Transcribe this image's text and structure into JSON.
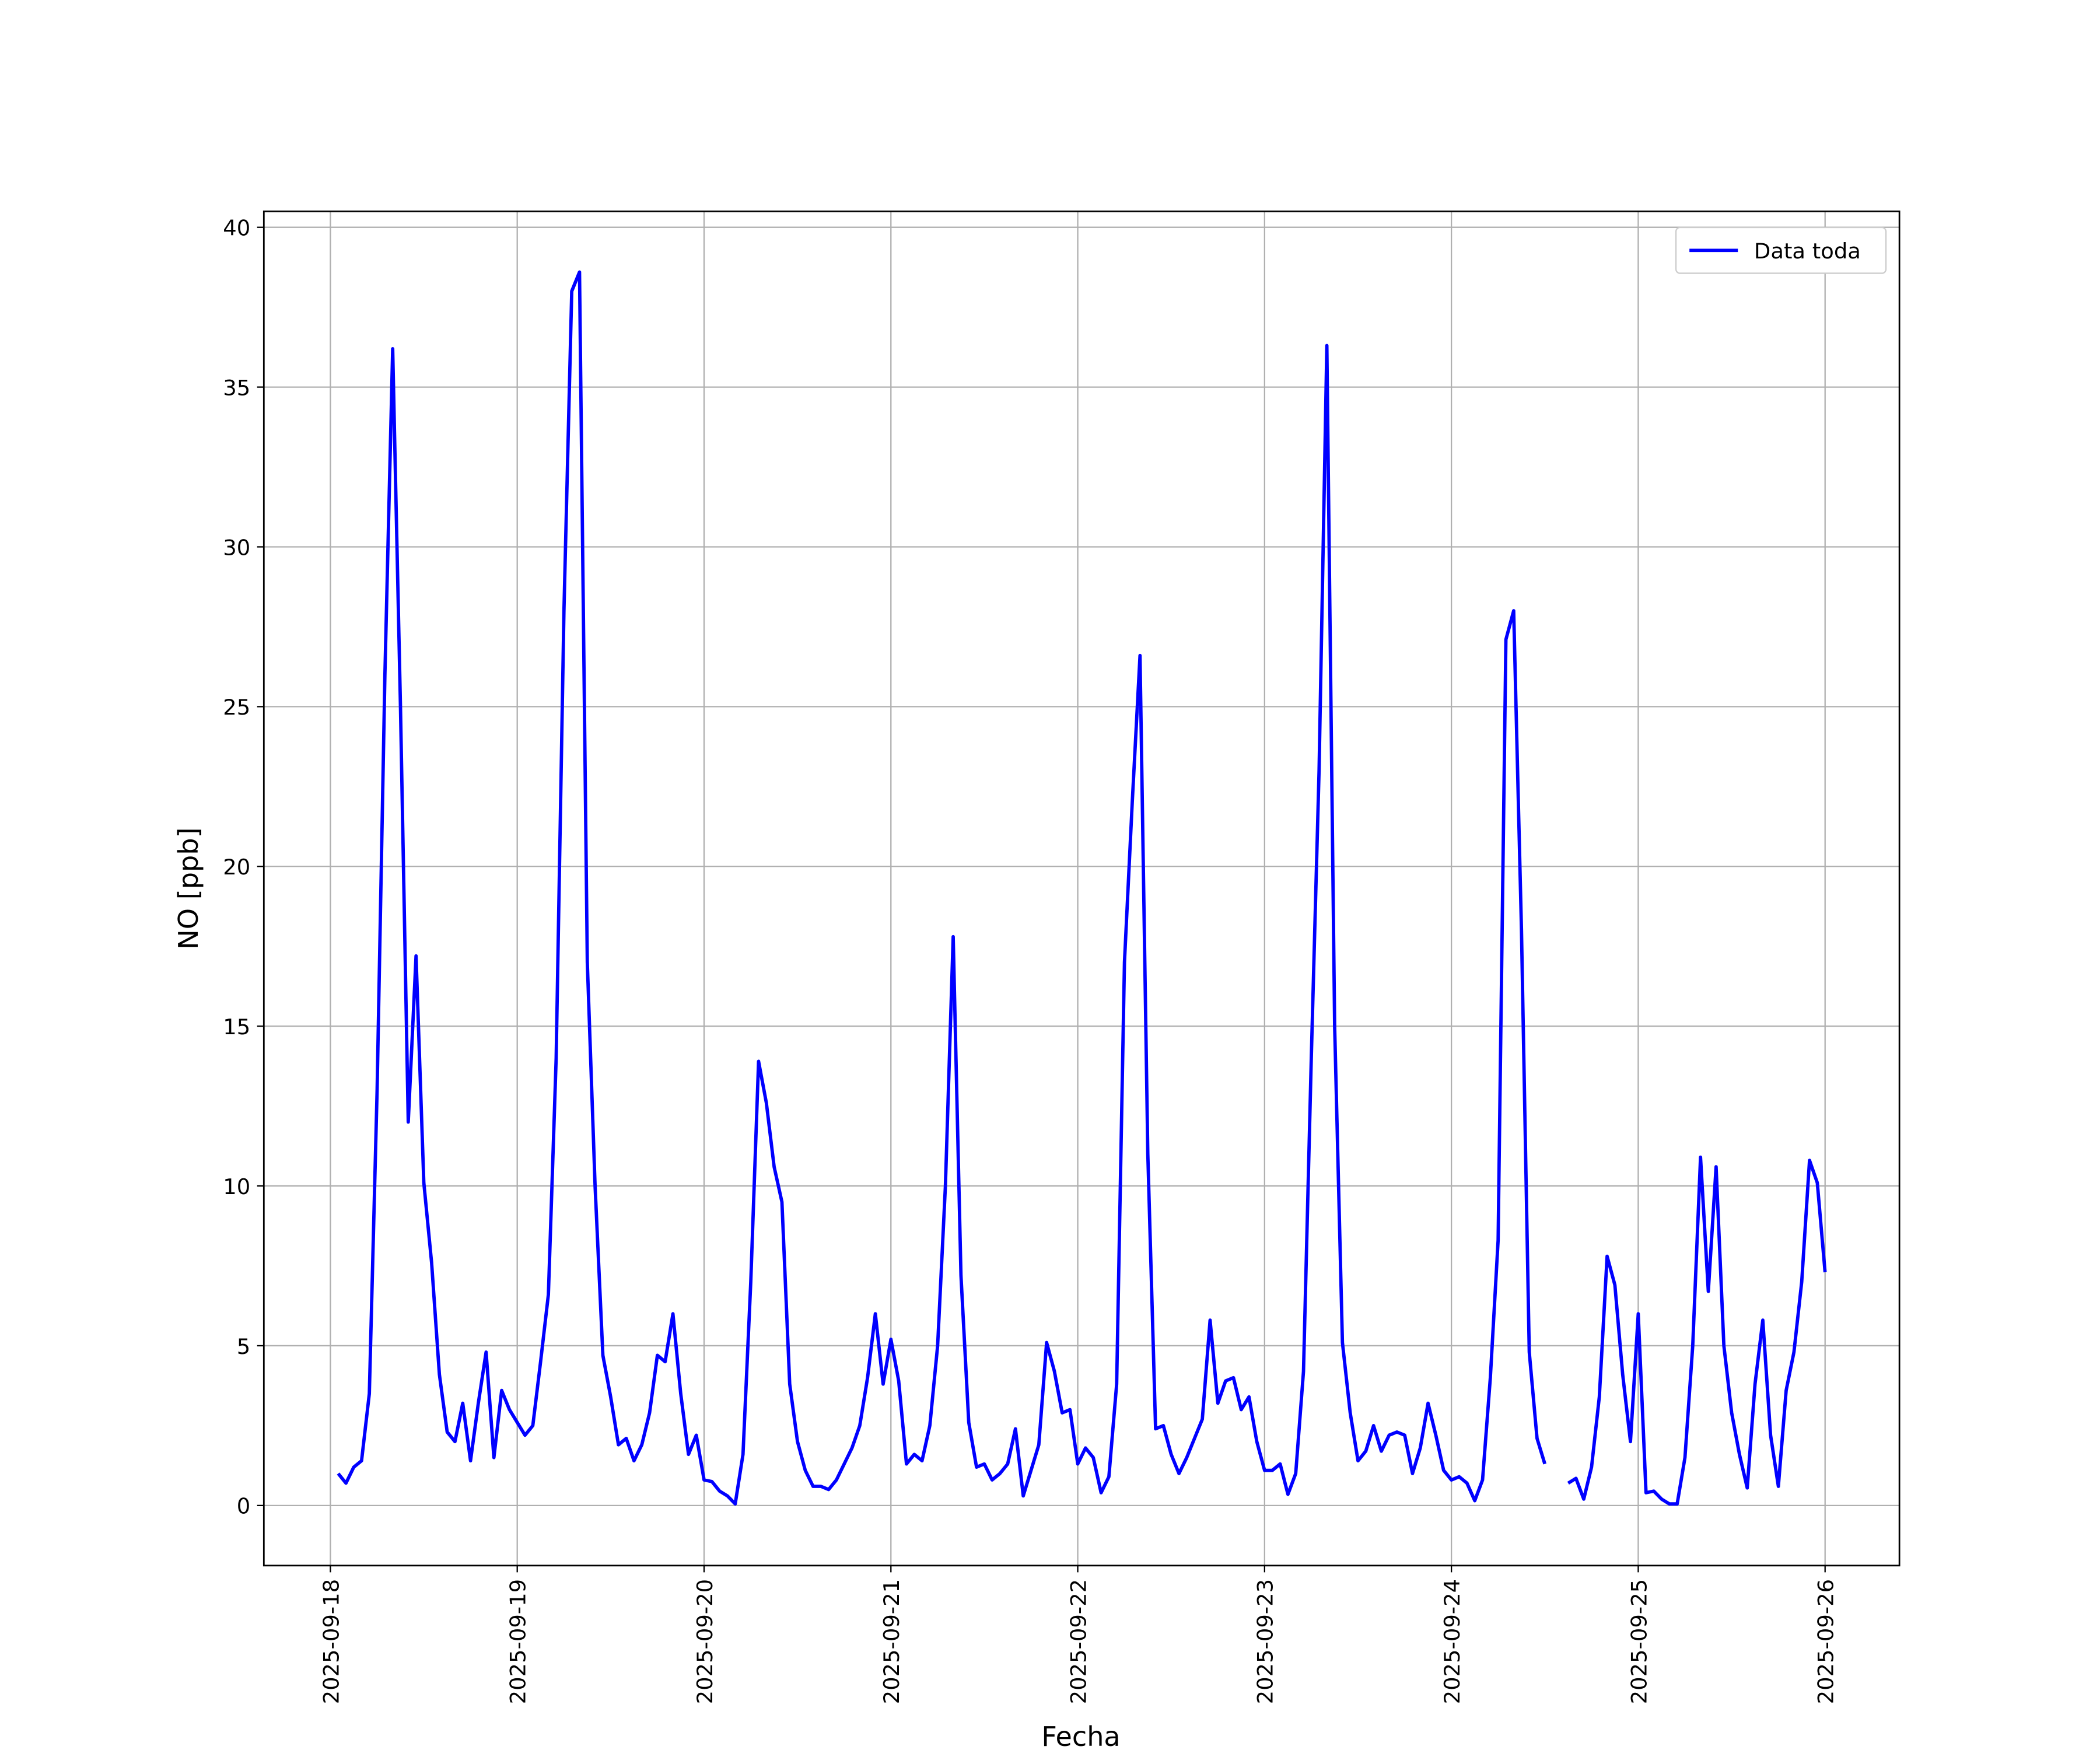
{
  "chart_data": {
    "type": "line",
    "ylabel": "NO [ppb]",
    "xlabel": "Fecha",
    "xlim": [
      "2025-09-17 15:27",
      "2025-09-26 09:33"
    ],
    "xticks": [
      "2025-09-18",
      "2025-09-19",
      "2025-09-20",
      "2025-09-21",
      "2025-09-22",
      "2025-09-23",
      "2025-09-24",
      "2025-09-25",
      "2025-09-26"
    ],
    "ylim": [
      -1.88,
      40.5
    ],
    "yticks": [
      0,
      5,
      10,
      15,
      20,
      25,
      30,
      35,
      40
    ],
    "grid": true,
    "legend": "upper right",
    "x": [
      "2025-09-18 01:00",
      "2025-09-18 02:00",
      "2025-09-18 03:00",
      "2025-09-18 04:00",
      "2025-09-18 05:00",
      "2025-09-18 06:00",
      "2025-09-18 07:00",
      "2025-09-18 08:00",
      "2025-09-18 09:00",
      "2025-09-18 10:00",
      "2025-09-18 11:00",
      "2025-09-18 12:00",
      "2025-09-18 13:00",
      "2025-09-18 14:00",
      "2025-09-18 15:00",
      "2025-09-18 16:00",
      "2025-09-18 17:00",
      "2025-09-18 18:00",
      "2025-09-18 19:00",
      "2025-09-18 20:00",
      "2025-09-18 21:00",
      "2025-09-18 22:00",
      "2025-09-18 23:00",
      "2025-09-19 00:00",
      "2025-09-19 01:00",
      "2025-09-19 02:00",
      "2025-09-19 03:00",
      "2025-09-19 04:00",
      "2025-09-19 05:00",
      "2025-09-19 06:00",
      "2025-09-19 07:00",
      "2025-09-19 08:00",
      "2025-09-19 09:00",
      "2025-09-19 10:00",
      "2025-09-19 11:00",
      "2025-09-19 12:00",
      "2025-09-19 13:00",
      "2025-09-19 14:00",
      "2025-09-19 15:00",
      "2025-09-19 16:00",
      "2025-09-19 17:00",
      "2025-09-19 18:00",
      "2025-09-19 19:00",
      "2025-09-19 20:00",
      "2025-09-19 21:00",
      "2025-09-19 22:00",
      "2025-09-19 23:00",
      "2025-09-20 00:00",
      "2025-09-20 01:00",
      "2025-09-20 02:00",
      "2025-09-20 03:00",
      "2025-09-20 04:00",
      "2025-09-20 05:00",
      "2025-09-20 06:00",
      "2025-09-20 07:00",
      "2025-09-20 08:00",
      "2025-09-20 09:00",
      "2025-09-20 10:00",
      "2025-09-20 11:00",
      "2025-09-20 12:00",
      "2025-09-20 13:00",
      "2025-09-20 14:00",
      "2025-09-20 15:00",
      "2025-09-20 16:00",
      "2025-09-20 17:00",
      "2025-09-20 18:00",
      "2025-09-20 19:00",
      "2025-09-20 20:00",
      "2025-09-20 21:00",
      "2025-09-20 22:00",
      "2025-09-20 23:00",
      "2025-09-21 00:00",
      "2025-09-21 01:00",
      "2025-09-21 02:00",
      "2025-09-21 03:00",
      "2025-09-21 04:00",
      "2025-09-21 05:00",
      "2025-09-21 06:00",
      "2025-09-21 07:00",
      "2025-09-21 08:00",
      "2025-09-21 09:00",
      "2025-09-21 10:00",
      "2025-09-21 11:00",
      "2025-09-21 12:00",
      "2025-09-21 13:00",
      "2025-09-21 14:00",
      "2025-09-21 15:00",
      "2025-09-21 16:00",
      "2025-09-21 17:00",
      "2025-09-21 18:00",
      "2025-09-21 19:00",
      "2025-09-21 20:00",
      "2025-09-21 21:00",
      "2025-09-21 22:00",
      "2025-09-21 23:00",
      "2025-09-22 00:00",
      "2025-09-22 01:00",
      "2025-09-22 02:00",
      "2025-09-22 03:00",
      "2025-09-22 04:00",
      "2025-09-22 05:00",
      "2025-09-22 06:00",
      "2025-09-22 07:00",
      "2025-09-22 08:00",
      "2025-09-22 09:00",
      "2025-09-22 10:00",
      "2025-09-22 11:00",
      "2025-09-22 12:00",
      "2025-09-22 13:00",
      "2025-09-22 14:00",
      "2025-09-22 15:00",
      "2025-09-22 16:00",
      "2025-09-22 17:00",
      "2025-09-22 18:00",
      "2025-09-22 19:00",
      "2025-09-22 20:00",
      "2025-09-22 21:00",
      "2025-09-22 22:00",
      "2025-09-22 23:00",
      "2025-09-23 00:00",
      "2025-09-23 01:00",
      "2025-09-23 02:00",
      "2025-09-23 03:00",
      "2025-09-23 04:00",
      "2025-09-23 05:00",
      "2025-09-23 06:00",
      "2025-09-23 07:00",
      "2025-09-23 08:00",
      "2025-09-23 09:00",
      "2025-09-23 10:00",
      "2025-09-23 11:00",
      "2025-09-23 12:00",
      "2025-09-23 13:00",
      "2025-09-23 14:00",
      "2025-09-23 15:00",
      "2025-09-23 16:00",
      "2025-09-23 17:00",
      "2025-09-23 18:00",
      "2025-09-23 19:00",
      "2025-09-23 20:00",
      "2025-09-23 21:00",
      "2025-09-23 22:00",
      "2025-09-23 23:00",
      "2025-09-24 00:00",
      "2025-09-24 01:00",
      "2025-09-24 02:00",
      "2025-09-24 03:00",
      "2025-09-24 04:00",
      "2025-09-24 05:00",
      "2025-09-24 06:00",
      "2025-09-24 07:00",
      "2025-09-24 08:00",
      "2025-09-24 09:00",
      "2025-09-24 10:00",
      "2025-09-24 11:00",
      "2025-09-24 12:00",
      "2025-09-24 13:00",
      "2025-09-24 14:00",
      "2025-09-24 15:00",
      "2025-09-24 16:00",
      "2025-09-24 17:00",
      "2025-09-24 18:00",
      "2025-09-24 19:00",
      "2025-09-24 20:00",
      "2025-09-24 21:00",
      "2025-09-24 22:00",
      "2025-09-24 23:00",
      "2025-09-25 00:00",
      "2025-09-25 01:00",
      "2025-09-25 02:00",
      "2025-09-25 03:00",
      "2025-09-25 04:00",
      "2025-09-25 05:00",
      "2025-09-25 06:00",
      "2025-09-25 07:00",
      "2025-09-25 08:00",
      "2025-09-25 09:00",
      "2025-09-25 10:00",
      "2025-09-25 11:00",
      "2025-09-25 12:00",
      "2025-09-25 13:00",
      "2025-09-25 14:00",
      "2025-09-25 15:00",
      "2025-09-25 16:00",
      "2025-09-25 17:00",
      "2025-09-25 18:00",
      "2025-09-25 19:00",
      "2025-09-25 20:00",
      "2025-09-25 21:00",
      "2025-09-25 22:00",
      "2025-09-25 23:00",
      "2025-09-26 00:00"
    ],
    "series": [
      {
        "name": "Data toda",
        "color": "#0000ff",
        "values": [
          1.0,
          0.7,
          1.2,
          1.4,
          3.5,
          13,
          26,
          36.2,
          25,
          12,
          17.2,
          10.1,
          7.6,
          4.1,
          2.3,
          2.0,
          3.2,
          1.4,
          3.2,
          4.8,
          1.5,
          3.6,
          3.0,
          2.6,
          2.2,
          2.5,
          4.5,
          6.6,
          14,
          28,
          38,
          38.6,
          17,
          10,
          4.7,
          3.4,
          1.9,
          2.1,
          1.4,
          1.9,
          2.9,
          4.7,
          4.5,
          6.0,
          3.5,
          1.6,
          2.2,
          0.8,
          0.75,
          0.45,
          0.3,
          0.05,
          1.6,
          7,
          13.9,
          12.6,
          10.6,
          9.5,
          3.8,
          2.0,
          1.1,
          0.6,
          0.6,
          0.5,
          0.8,
          1.3,
          1.8,
          2.5,
          4.0,
          6.0,
          3.8,
          5.2,
          3.9,
          1.3,
          1.6,
          1.4,
          2.5,
          5,
          10,
          17.8,
          7.2,
          2.6,
          1.2,
          1.3,
          0.8,
          1.0,
          1.3,
          2.4,
          0.3,
          1.1,
          1.9,
          5.1,
          4.2,
          2.9,
          3.0,
          1.3,
          1.8,
          1.5,
          0.4,
          0.9,
          3.8,
          17,
          22,
          26.6,
          11,
          2.4,
          2.5,
          1.6,
          1.0,
          1.5,
          2.1,
          2.7,
          5.8,
          3.2,
          3.9,
          4.0,
          3.0,
          3.4,
          2.0,
          1.1,
          1.1,
          1.3,
          0.35,
          1.0,
          4.2,
          14,
          23,
          36.3,
          15,
          5.1,
          2.9,
          1.4,
          1.7,
          2.5,
          1.7,
          2.2,
          2.3,
          2.2,
          1.0,
          1.8,
          3.2,
          2.2,
          1.1,
          0.8,
          0.9,
          0.7,
          0.15,
          0.8,
          4,
          8.3,
          27.1,
          28.0,
          18,
          4.8,
          2.1,
          1.3,
          null,
          null,
          0.7,
          0.85,
          0.2,
          1.2,
          3.4,
          7.8,
          6.9,
          4.1,
          2.0,
          6.0,
          0.4,
          0.45,
          0.2,
          0.05,
          0.05,
          1.5,
          5,
          10.9,
          6.7,
          10.6,
          5.0,
          2.9,
          1.6,
          0.55,
          3.8,
          5.8,
          2.2,
          0.6,
          3.6,
          4.8,
          7.0,
          10.8,
          10.1,
          7.3
        ]
      }
    ]
  }
}
